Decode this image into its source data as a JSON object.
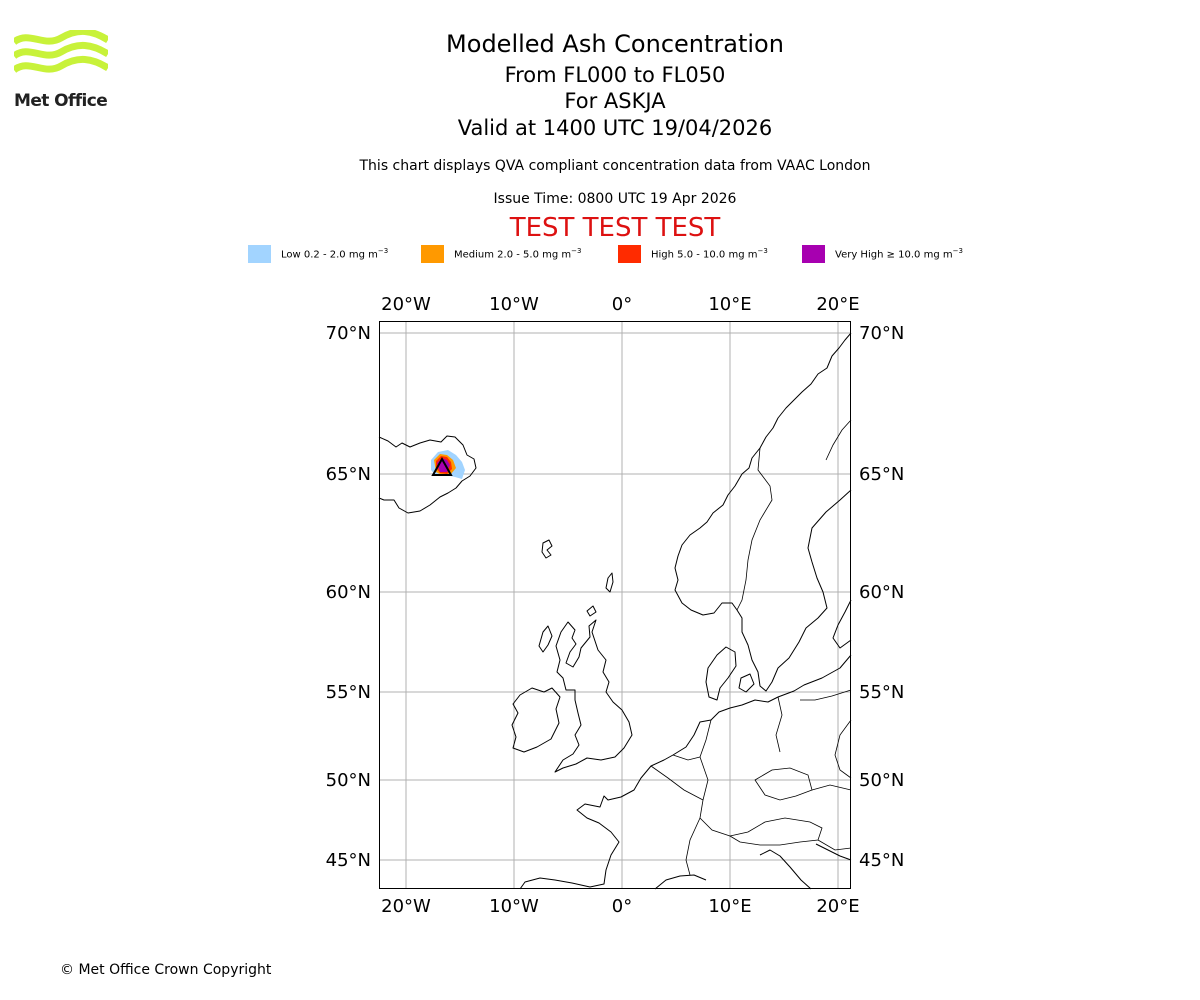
{
  "header": {
    "title": "Modelled Ash Concentration",
    "levels": "From FL000 to FL050",
    "volcano": "For ASKJA",
    "valid": "Valid at 1400 UTC 19/04/2026",
    "subtitle": "This chart displays QVA compliant concentration data from VAAC London",
    "issue_time": "Issue Time: 0800 UTC 19 Apr 2026",
    "test_banner": "TEST TEST TEST"
  },
  "logo": {
    "text": "Met Office",
    "color": "#c8f23a"
  },
  "legend": [
    {
      "label": "Low 0.2 - 2.0 mg m",
      "unit_exp": "−3",
      "color": "#a2d4ff"
    },
    {
      "label": "Medium 2.0 - 5.0 mg m",
      "unit_exp": "−3",
      "color": "#ff9900"
    },
    {
      "label": "High 5.0 - 10.0 mg m",
      "unit_exp": "−3",
      "color": "#ff2b00"
    },
    {
      "label": "Very High  ≥  10.0 mg m",
      "unit_exp": "−3",
      "color": "#a700b0"
    }
  ],
  "map": {
    "extent": {
      "lon_min": -22.5,
      "lon_max": 21.5,
      "lat_min": 43.5,
      "lat_max": 70.5
    },
    "lon_ticks": [
      "20°W",
      "10°W",
      "0°",
      "10°E",
      "20°E"
    ],
    "lat_ticks": [
      "70°N",
      "65°N",
      "60°N",
      "55°N",
      "50°N",
      "45°N"
    ],
    "volcano_name": "ASKJA",
    "volcano_location": {
      "lat": 65.03,
      "lon": -16.75
    }
  },
  "footer": {
    "copyright": "© Met Office Crown Copyright"
  }
}
